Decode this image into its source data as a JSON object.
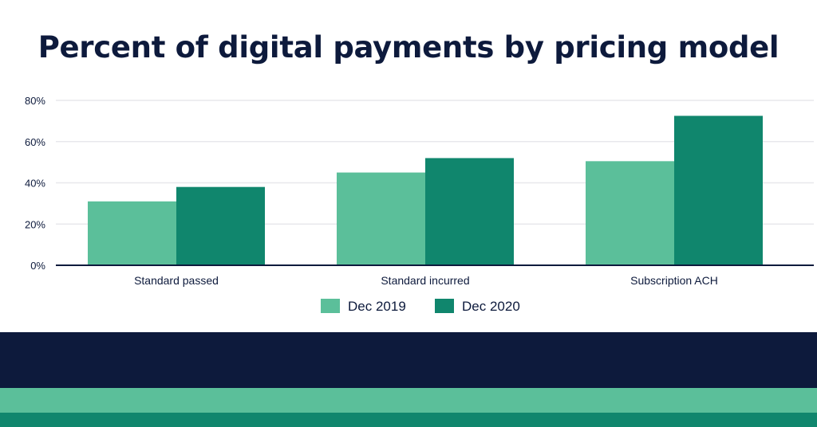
{
  "chart_data": {
    "type": "bar",
    "title": "Percent of digital payments by pricing model",
    "categories": [
      "Standard passed",
      "Standard incurred",
      "Subscription ACH"
    ],
    "series": [
      {
        "name": "Dec 2019",
        "values": [
          31,
          45,
          50.5
        ],
        "color": "#5bbf9a"
      },
      {
        "name": "Dec 2020",
        "values": [
          38,
          52,
          72.5
        ],
        "color": "#10866d"
      }
    ],
    "ylim": [
      0,
      80
    ],
    "yticks": [
      0,
      20,
      40,
      60,
      80
    ],
    "ytick_labels": [
      "0%",
      "20%",
      "40%",
      "60%",
      "80%"
    ],
    "xlabel": "",
    "ylabel": "",
    "grid": true,
    "legend": "bottom"
  },
  "colors": {
    "navy": "#0d1a3c",
    "light_green": "#5bbf9a",
    "dark_green": "#10866d"
  }
}
